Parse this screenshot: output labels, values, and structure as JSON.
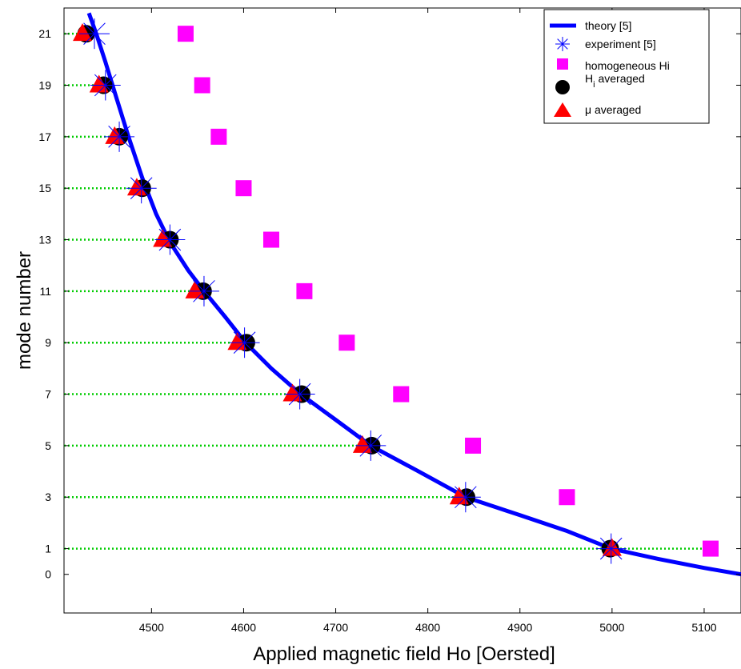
{
  "chart_data": {
    "type": "scatter",
    "title": "",
    "xlabel": "Applied magnetic field Ho [Oersted]",
    "ylabel": "mode number",
    "xlim": [
      4405,
      5140
    ],
    "ylim": [
      -1.5,
      22
    ],
    "xticks": [
      4500,
      4600,
      4700,
      4800,
      4900,
      5000,
      5100
    ],
    "yticks": [
      0,
      1,
      3,
      5,
      7,
      9,
      11,
      13,
      15,
      17,
      19,
      21
    ],
    "grid": false,
    "legend_position": "top-right",
    "colors": {
      "theory": "#0000ff",
      "experiment": "#0000ff",
      "homogeneous": "#ff00ff",
      "hi_averaged": "#000000",
      "mu_averaged": "#ff0000",
      "guide_lines": "#00cc00"
    },
    "theory_curve": {
      "x": [
        4432,
        4440,
        4450,
        4462,
        4475,
        4490,
        4505,
        4520,
        4540,
        4557,
        4580,
        4602,
        4630,
        4662,
        4700,
        4738,
        4790,
        4841,
        4900,
        4950,
        4999,
        5050,
        5100,
        5140
      ],
      "y": [
        21.8,
        21,
        19.9,
        18.5,
        17.0,
        15.4,
        14.0,
        12.9,
        11.8,
        11,
        10.0,
        9,
        8.0,
        7,
        6.0,
        5,
        4.0,
        3,
        2.3,
        1.7,
        1,
        0.6,
        0.25,
        0
      ]
    },
    "guide_lines": {
      "modes": [
        21,
        19,
        17,
        15,
        13,
        11,
        9,
        7,
        5,
        3,
        1
      ],
      "x_start": 4405,
      "x_end": [
        4438,
        4453,
        4466,
        4491,
        4521,
        4557,
        4603,
        4663,
        4739,
        4842,
        5105
      ]
    },
    "series": [
      {
        "name": "theory [5]",
        "marker": "line",
        "x": [],
        "y": []
      },
      {
        "name": "experiment [5]",
        "marker": "asterisk",
        "x": [
          4438,
          4450,
          4465,
          4489,
          4520,
          4557,
          4601,
          4661,
          4738,
          4841,
          4999
        ],
        "y": [
          21,
          19,
          17,
          15,
          13,
          11,
          9,
          7,
          5,
          3,
          1
        ]
      },
      {
        "name": "homogeneous Hi",
        "marker": "square",
        "x": [
          4537,
          4555,
          4573,
          4600,
          4630,
          4666,
          4712,
          4771,
          4849,
          4951,
          5107
        ],
        "y": [
          21,
          19,
          17,
          15,
          13,
          11,
          9,
          7,
          5,
          3,
          1
        ]
      },
      {
        "name": "H_i averaged",
        "name_main": "H",
        "name_sub": "i",
        "name_rest": " averaged",
        "marker": "circle",
        "x": [
          4429,
          4448,
          4465,
          4490,
          4520,
          4556,
          4603,
          4663,
          4739,
          4842,
          4998
        ],
        "y": [
          21,
          19,
          17,
          15,
          13,
          11,
          9,
          7,
          5,
          3,
          1
        ]
      },
      {
        "name": "μ averaged",
        "marker": "triangle",
        "x": [
          4425,
          4443,
          4460,
          4484,
          4512,
          4547,
          4593,
          4653,
          4729,
          4834,
          5000
        ],
        "y": [
          21,
          19,
          17,
          15,
          13,
          11,
          9,
          7,
          5,
          3,
          1
        ]
      }
    ]
  }
}
